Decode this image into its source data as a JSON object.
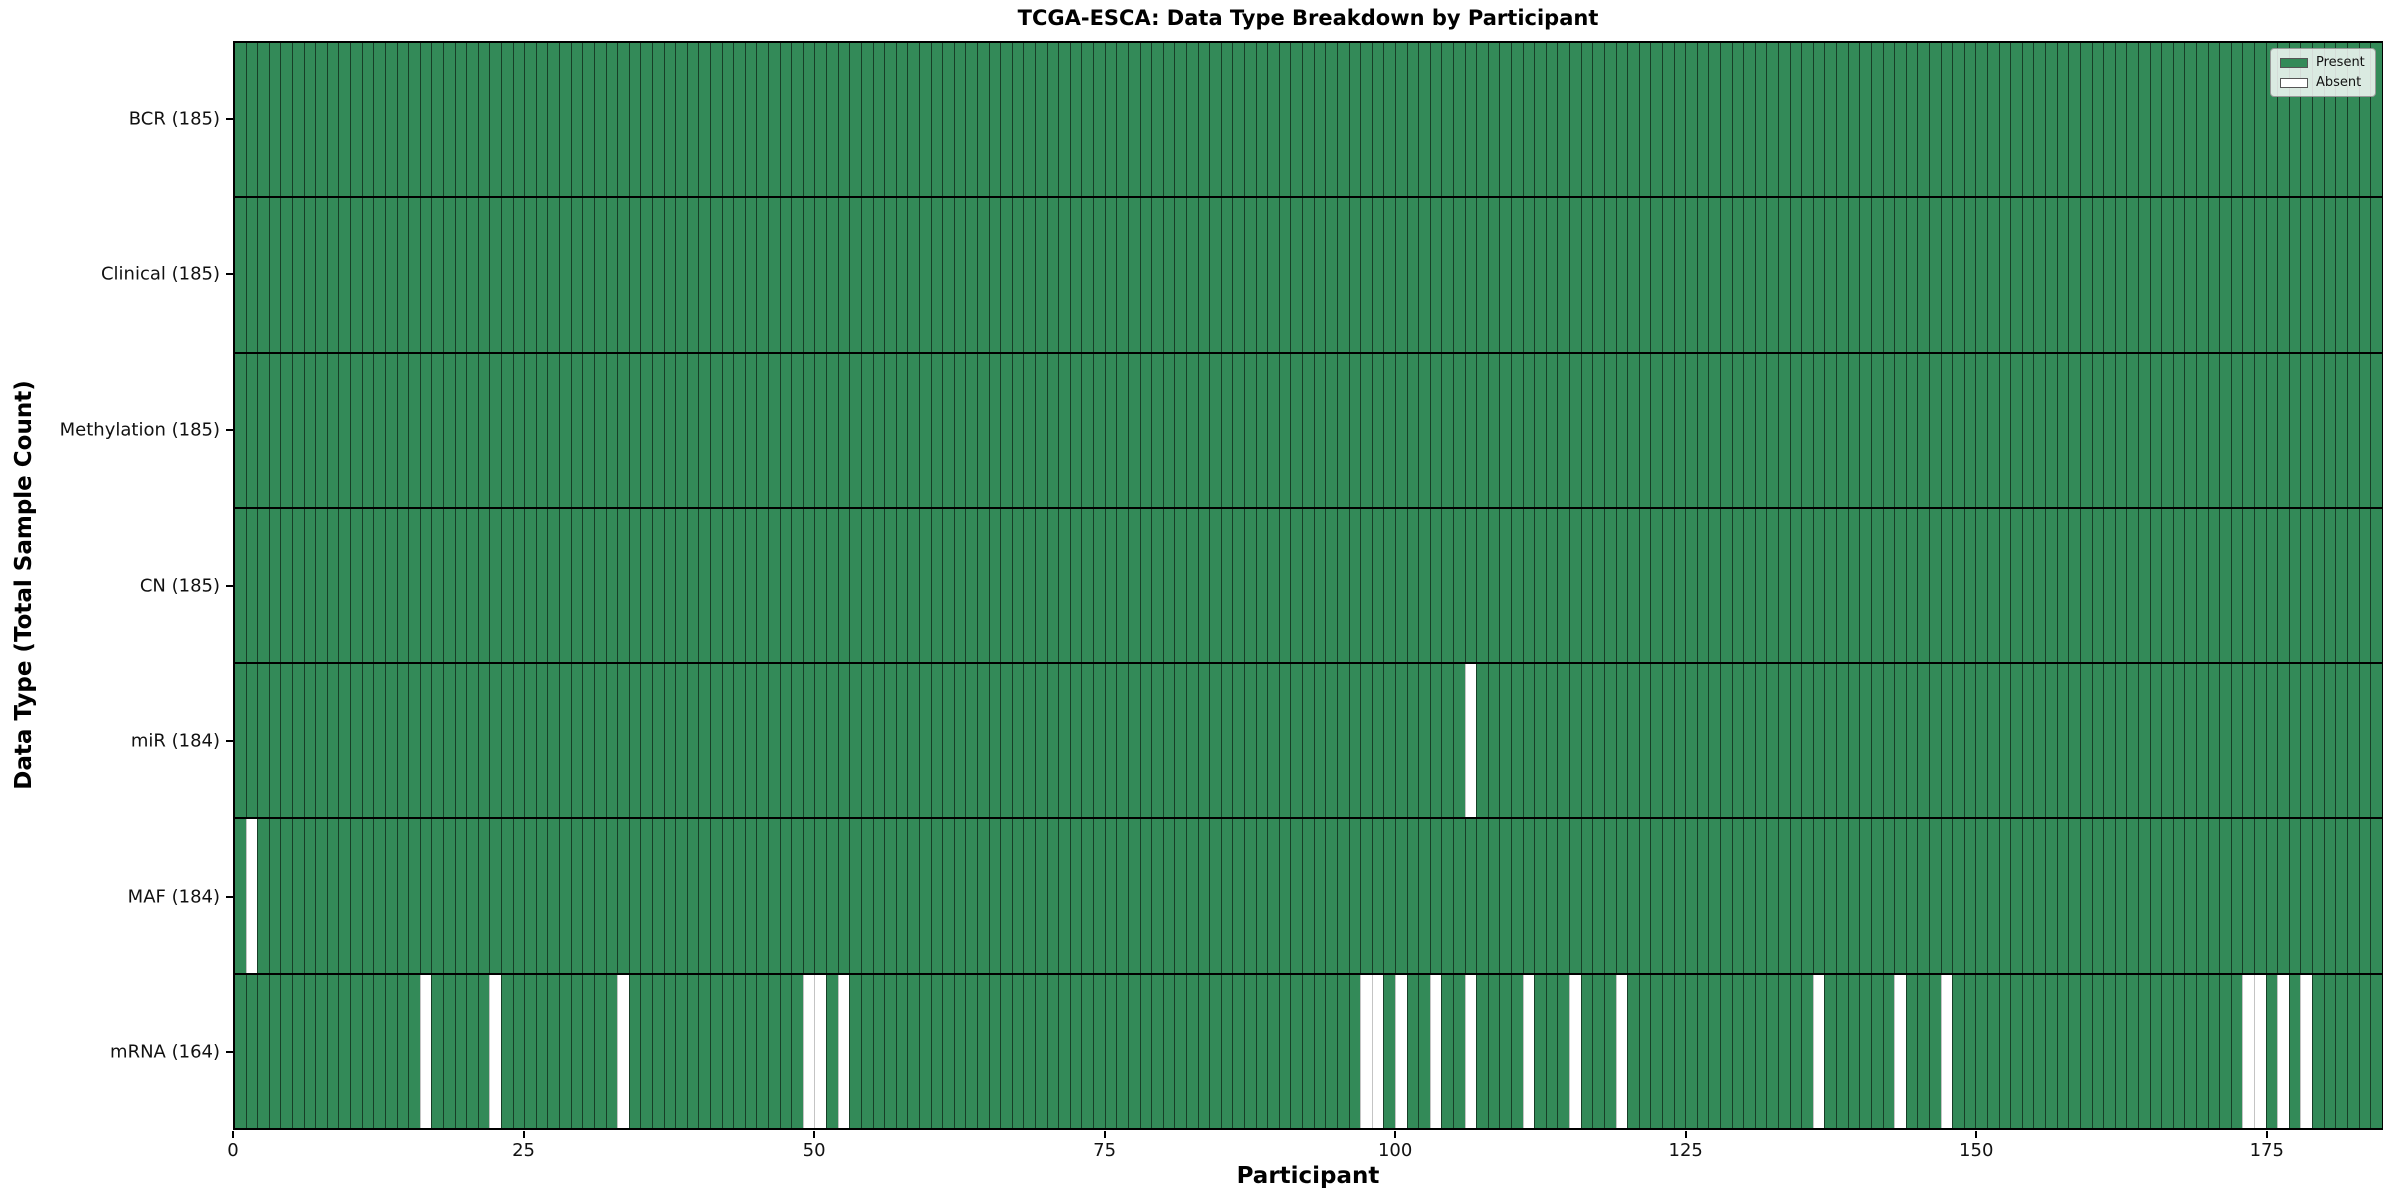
{
  "title": "TCGA-ESCA: Data Type Breakdown by Participant",
  "xlabel": "Participant",
  "ylabel": "Data Type (Total Sample Count)",
  "legend": [
    {
      "label": "Present",
      "color": "#338a58"
    },
    {
      "label": "Absent",
      "color": "#ffffff"
    }
  ],
  "chart_data": {
    "type": "heatmap",
    "title": "TCGA-ESCA: Data Type Breakdown by Participant",
    "xlabel": "Participant",
    "ylabel": "Data Type (Total Sample Count)",
    "x_range": [
      0,
      185
    ],
    "x_ticks": [
      0,
      25,
      50,
      75,
      100,
      125,
      150,
      175
    ],
    "n_participants": 185,
    "legend_entries": [
      "Present",
      "Absent"
    ],
    "legend_position": "upper-right",
    "grid": false,
    "colors": {
      "present": "#338a58",
      "absent": "#ffffff",
      "present_edge": "rgba(0,0,0,0.55)",
      "absent_edge": "#c4c4c4",
      "row_divider": "#000000"
    },
    "rows": [
      {
        "key": "bcr",
        "label": "BCR (185)",
        "present_count": 185,
        "absent_participants": []
      },
      {
        "key": "clinical",
        "label": "Clinical (185)",
        "present_count": 185,
        "absent_participants": []
      },
      {
        "key": "methylation",
        "label": "Methylation (185)",
        "present_count": 185,
        "absent_participants": []
      },
      {
        "key": "cn",
        "label": "CN (185)",
        "present_count": 185,
        "absent_participants": []
      },
      {
        "key": "mir",
        "label": "miR (184)",
        "present_count": 184,
        "absent_participants": [
          106
        ]
      },
      {
        "key": "maf",
        "label": "MAF (184)",
        "present_count": 184,
        "absent_participants": [
          1
        ]
      },
      {
        "key": "mrna",
        "label": "mRNA (164)",
        "present_count": 164,
        "absent_participants": [
          16,
          22,
          33,
          49,
          50,
          52,
          97,
          98,
          100,
          103,
          106,
          111,
          115,
          119,
          136,
          143,
          147,
          173,
          174,
          176,
          178
        ]
      }
    ]
  }
}
